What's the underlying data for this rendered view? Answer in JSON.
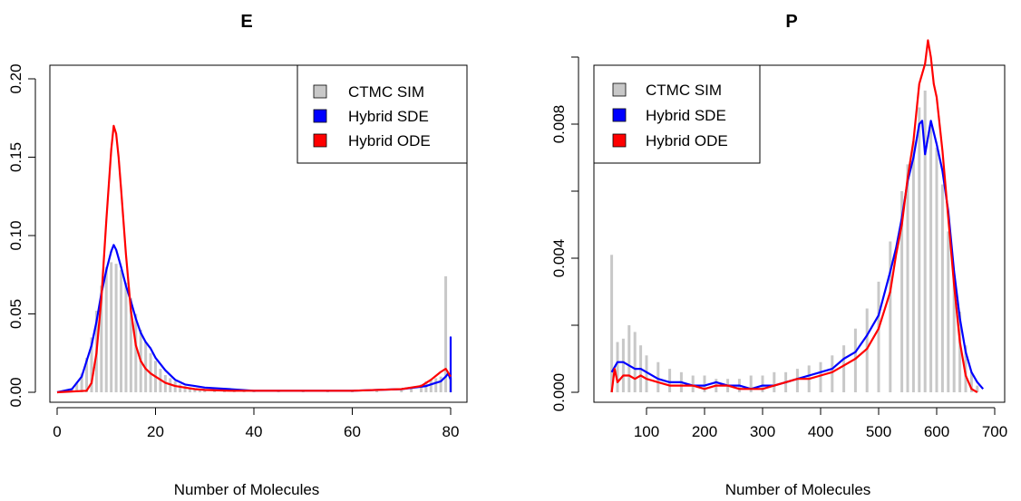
{
  "colors": {
    "hist": "#c8c8c8",
    "sde": "#0000ff",
    "ode": "#ff0000"
  },
  "legend": [
    {
      "label": "CTMC SIM",
      "color": "#c8c8c8"
    },
    {
      "label": "Hybrid SDE",
      "color": "#0000ff"
    },
    {
      "label": "Hybrid ODE",
      "color": "#ff0000"
    }
  ],
  "chart_data": [
    {
      "type": "line",
      "title": "E",
      "xlabel": "Number of Molecules",
      "ylabel": "",
      "xlim": [
        0,
        80
      ],
      "ylim": [
        0,
        0.2
      ],
      "xticks": [
        "0",
        "20",
        "40",
        "60",
        "80"
      ],
      "yticks": [
        "0.00",
        "0.05",
        "0.10",
        "0.15",
        "0.20"
      ],
      "legend_position": "top-right",
      "histogram": {
        "name": "CTMC SIM",
        "x": [
          3,
          4,
          5,
          6,
          7,
          8,
          9,
          10,
          11,
          12,
          13,
          14,
          15,
          16,
          17,
          18,
          19,
          20,
          21,
          22,
          23,
          24,
          25,
          26,
          27,
          28,
          29,
          30,
          32,
          34,
          36,
          38,
          40,
          45,
          50,
          55,
          60,
          65,
          70,
          72,
          74,
          75,
          76,
          77,
          78,
          79,
          80
        ],
        "values": [
          0.002,
          0.006,
          0.012,
          0.022,
          0.035,
          0.052,
          0.068,
          0.08,
          0.083,
          0.082,
          0.078,
          0.07,
          0.06,
          0.05,
          0.04,
          0.032,
          0.025,
          0.02,
          0.015,
          0.011,
          0.009,
          0.007,
          0.005,
          0.004,
          0.003,
          0.0025,
          0.002,
          0.0015,
          0.001,
          0.001,
          0.001,
          0.001,
          0.001,
          0.001,
          0.001,
          0.001,
          0.001,
          0.001,
          0.002,
          0.003,
          0.005,
          0.007,
          0.008,
          0.009,
          0.01,
          0.074,
          0.009
        ]
      },
      "series": [
        {
          "name": "Hybrid SDE",
          "x": [
            0,
            3,
            5,
            7,
            8,
            9,
            10,
            11,
            11.5,
            12,
            13,
            14,
            15,
            16,
            17,
            18,
            19,
            20,
            22,
            24,
            26,
            28,
            30,
            35,
            40,
            50,
            60,
            70,
            75,
            77,
            78,
            79,
            79.5,
            80,
            80,
            80
          ],
          "values": [
            0,
            0.002,
            0.01,
            0.03,
            0.045,
            0.063,
            0.078,
            0.09,
            0.094,
            0.091,
            0.08,
            0.068,
            0.058,
            0.047,
            0.038,
            0.032,
            0.028,
            0.022,
            0.014,
            0.008,
            0.005,
            0.004,
            0.003,
            0.002,
            0.001,
            0.001,
            0.001,
            0.002,
            0.004,
            0.006,
            0.007,
            0.01,
            0.012,
            0.008,
            0.035,
            0
          ]
        },
        {
          "name": "Hybrid ODE",
          "x": [
            0,
            6,
            7,
            8,
            9,
            10,
            11,
            11.5,
            12,
            12.5,
            13,
            14,
            15,
            16,
            17,
            18,
            19,
            20,
            22,
            24,
            26,
            28,
            30,
            35,
            40,
            50,
            60,
            70,
            74,
            76,
            78,
            79,
            80
          ],
          "values": [
            0,
            0.001,
            0.006,
            0.025,
            0.06,
            0.11,
            0.155,
            0.17,
            0.165,
            0.15,
            0.13,
            0.088,
            0.052,
            0.03,
            0.02,
            0.015,
            0.012,
            0.01,
            0.006,
            0.004,
            0.003,
            0.002,
            0.0015,
            0.001,
            0.001,
            0.001,
            0.001,
            0.002,
            0.004,
            0.008,
            0.013,
            0.015,
            0.01
          ]
        }
      ]
    },
    {
      "type": "line",
      "title": "P",
      "xlabel": "Number of Molecules",
      "ylabel": "",
      "xlim": [
        20,
        700
      ],
      "ylim": [
        0,
        0.01
      ],
      "xticks": [
        "100",
        "200",
        "300",
        "400",
        "500",
        "600",
        "700"
      ],
      "yticks": [
        "0.000",
        "0.004",
        "0.008"
      ],
      "legend_position": "top-left",
      "histogram": {
        "name": "CTMC SIM",
        "x": [
          40,
          50,
          60,
          70,
          80,
          90,
          100,
          120,
          140,
          160,
          180,
          200,
          220,
          240,
          260,
          280,
          300,
          320,
          340,
          360,
          380,
          400,
          420,
          440,
          460,
          480,
          500,
          520,
          540,
          550,
          560,
          570,
          580,
          590,
          600,
          610,
          620,
          630,
          640,
          650,
          660,
          670
        ],
        "values": [
          0.0041,
          0.0015,
          0.0016,
          0.002,
          0.0018,
          0.0014,
          0.0011,
          0.0009,
          0.0007,
          0.0006,
          0.0005,
          0.0005,
          0.0004,
          0.0004,
          0.0004,
          0.0005,
          0.0005,
          0.0006,
          0.0006,
          0.0007,
          0.0008,
          0.0009,
          0.0011,
          0.0014,
          0.0019,
          0.0025,
          0.0033,
          0.0045,
          0.006,
          0.0068,
          0.0075,
          0.0085,
          0.009,
          0.008,
          0.0073,
          0.0062,
          0.0048,
          0.0035,
          0.0024,
          0.0014,
          0.0006,
          0.0002
        ]
      },
      "series": [
        {
          "name": "Hybrid SDE",
          "x": [
            40,
            50,
            60,
            70,
            80,
            90,
            100,
            120,
            140,
            160,
            180,
            200,
            220,
            240,
            260,
            280,
            300,
            320,
            340,
            360,
            380,
            400,
            420,
            440,
            460,
            480,
            500,
            520,
            530,
            540,
            550,
            560,
            570,
            575,
            580,
            590,
            600,
            610,
            620,
            630,
            640,
            650,
            660,
            670,
            680
          ],
          "values": [
            0.0006,
            0.0009,
            0.0009,
            0.0008,
            0.0007,
            0.0007,
            0.0006,
            0.0004,
            0.0003,
            0.0003,
            0.0002,
            0.0002,
            0.0003,
            0.0002,
            0.0002,
            0.0001,
            0.0002,
            0.0002,
            0.0003,
            0.0004,
            0.0005,
            0.0006,
            0.0007,
            0.001,
            0.0012,
            0.0017,
            0.0023,
            0.0036,
            0.0043,
            0.0052,
            0.0063,
            0.007,
            0.008,
            0.0081,
            0.0071,
            0.0081,
            0.0074,
            0.0066,
            0.0054,
            0.0036,
            0.0022,
            0.0012,
            0.0006,
            0.0003,
            0.0001
          ]
        },
        {
          "name": "Hybrid ODE",
          "x": [
            40,
            45,
            50,
            60,
            70,
            80,
            90,
            100,
            120,
            140,
            160,
            180,
            200,
            220,
            240,
            260,
            280,
            300,
            320,
            340,
            360,
            380,
            400,
            420,
            440,
            460,
            480,
            500,
            520,
            530,
            540,
            550,
            560,
            570,
            580,
            585,
            590,
            595,
            600,
            610,
            620,
            630,
            640,
            650,
            660,
            670
          ],
          "values": [
            0.0,
            0.0007,
            0.0003,
            0.0005,
            0.0005,
            0.0004,
            0.0005,
            0.0004,
            0.0003,
            0.0002,
            0.0002,
            0.0002,
            0.0001,
            0.0002,
            0.0002,
            0.0001,
            0.0001,
            0.0001,
            0.0002,
            0.0003,
            0.0004,
            0.0004,
            0.0005,
            0.0006,
            0.0008,
            0.001,
            0.0013,
            0.0019,
            0.003,
            0.0041,
            0.005,
            0.0064,
            0.0075,
            0.0092,
            0.0098,
            0.0105,
            0.01,
            0.0092,
            0.0088,
            0.0072,
            0.0052,
            0.0032,
            0.0015,
            0.0005,
            0.0001,
            0.0
          ]
        }
      ]
    }
  ]
}
